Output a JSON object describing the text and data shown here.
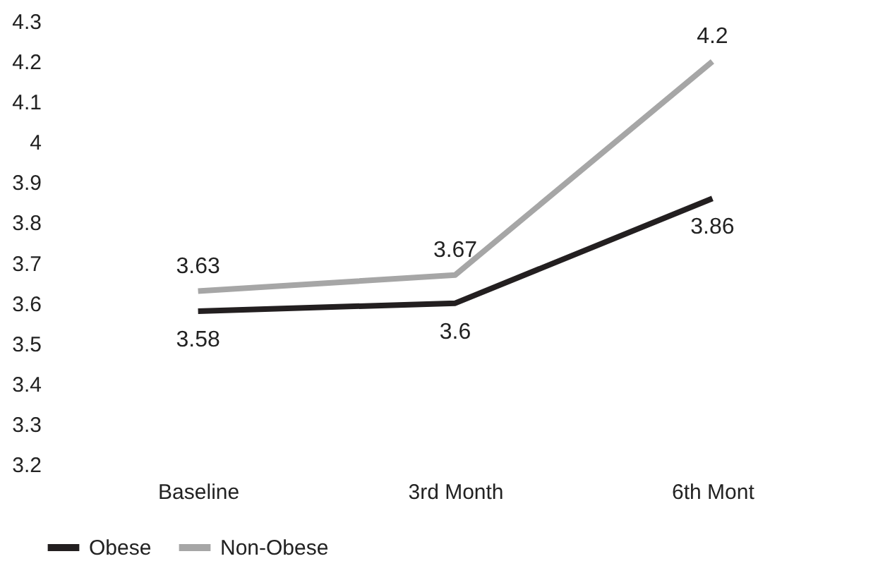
{
  "chart_data": {
    "type": "line",
    "categories": [
      "Baseline",
      "3rd Month",
      "6th Mont"
    ],
    "series": [
      {
        "name": "Obese",
        "color": "#231f20",
        "values": [
          3.58,
          3.6,
          3.86
        ]
      },
      {
        "name": "Non-Obese",
        "color": "#a6a6a6",
        "values": [
          3.63,
          3.67,
          4.2
        ]
      }
    ],
    "ylim": [
      3.2,
      4.3
    ],
    "yticks": [
      3.2,
      3.3,
      3.4,
      3.5,
      3.6,
      3.7,
      3.8,
      3.9,
      4,
      4.1,
      4.2,
      4.3
    ],
    "data_labels": true,
    "legend": "bottom",
    "grid": false,
    "marker": "none",
    "line_style": "solid"
  }
}
